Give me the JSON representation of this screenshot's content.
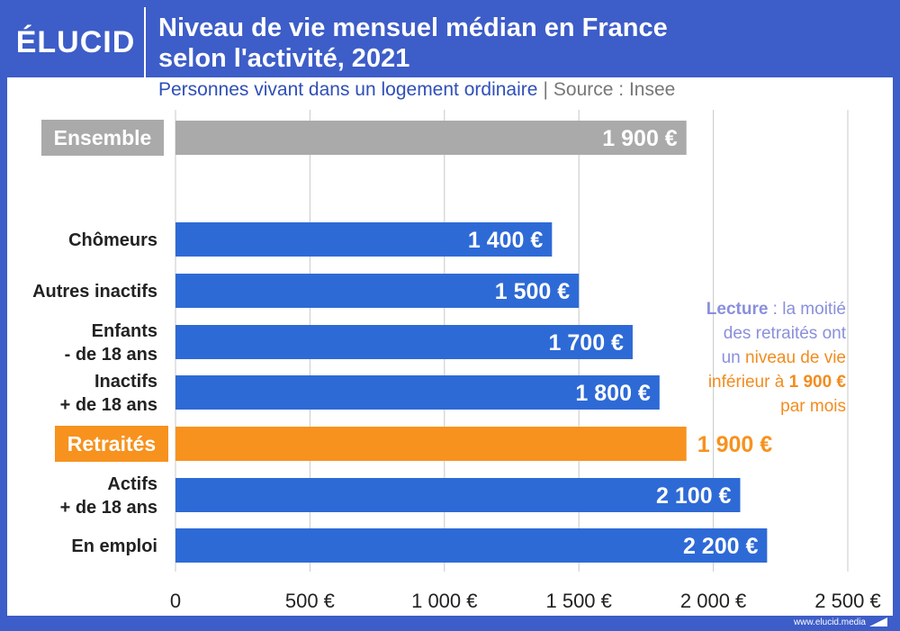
{
  "brand": {
    "logo": "ÉLUCID",
    "website": "www.elucid.media"
  },
  "header": {
    "title_line1": "Niveau de vie mensuel médian en France",
    "title_line2": "selon l'activité, 2021",
    "subtitle": "Personnes vivant dans un logement ordinaire",
    "source": "Source : Insee"
  },
  "colors": {
    "blue": "#2e6ad6",
    "grey": "#aaaaaa",
    "orange": "#f7921e",
    "accent": "#3d5dc8"
  },
  "annotation": {
    "lecture_label": "Lecture",
    "line1": " : la moitié",
    "line2": "des retraités ont",
    "line3a": "un ",
    "line3b": "niveau de vie",
    "line4a": "inférieur à ",
    "line4b": "1 900 €",
    "line5": "par mois"
  },
  "chart_data": {
    "type": "bar",
    "orientation": "horizontal",
    "categories": [
      [
        "Ensemble"
      ],
      [
        "Chômeurs"
      ],
      [
        "Autres inactifs"
      ],
      [
        "Enfants",
        "- de 18 ans"
      ],
      [
        "Inactifs",
        "+ de 18 ans"
      ],
      [
        "Retraités"
      ],
      [
        "Actifs",
        "+ de 18 ans"
      ],
      [
        "En emploi"
      ]
    ],
    "values": [
      1900,
      1400,
      1500,
      1700,
      1800,
      1900,
      2100,
      2200
    ],
    "value_labels": [
      "1 900 €",
      "1 400 €",
      "1 500 €",
      "1 700 €",
      "1 800 €",
      "1 900 €",
      "2 100 €",
      "2 200 €"
    ],
    "highlight": [
      "grey",
      "blue",
      "blue",
      "blue",
      "blue",
      "orange",
      "blue",
      "blue"
    ],
    "xlim": [
      0,
      2500
    ],
    "xticks": [
      0,
      500,
      1000,
      1500,
      2000,
      2500
    ],
    "xtick_labels": [
      "0",
      "500 €",
      "1 000 €",
      "1 500 €",
      "2 000 €",
      "2 500 €"
    ],
    "grid": true
  }
}
